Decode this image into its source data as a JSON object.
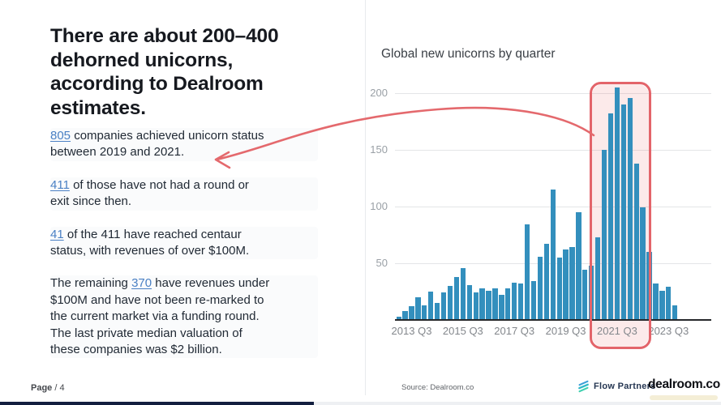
{
  "left": {
    "title": "There are about 200–400\ndehorned unicorns,\naccording to Dealroom\nestimates.",
    "paragraphs": [
      [
        {
          "t": "805",
          "link": true
        },
        {
          "t": " companies achieved unicorn status\nbetween 2019 and 2021."
        }
      ],
      [
        {
          "t": "411",
          "link": true
        },
        {
          "t": " of those have not had a round or\nexit since then."
        }
      ],
      [
        {
          "t": "41",
          "link": true
        },
        {
          "t": " of the 411 have reached centaur\nstatus, with revenues of over $100M."
        }
      ],
      [
        {
          "t": "The remaining "
        },
        {
          "t": "370",
          "link": true
        },
        {
          "t": " have revenues under\n$100M and have not been re-marked to\nthe current market via a funding round.\nThe last private median valuation of\nthese companies was $2 billion."
        }
      ]
    ]
  },
  "footer": {
    "page_bold": "Page",
    "page_rest": " / 4",
    "source": "Source: Dealroom.co",
    "partner_name": "Flow Partners",
    "brand_name": "dealroom.co"
  },
  "colors": {
    "bar_blue": "#338fbd",
    "accent_red": "#e3646a",
    "highlight_fill": "rgba(232,105,108,0.14)",
    "link_blue": "#4a80c4",
    "progress_navy": "#131f3f"
  },
  "chart_data": {
    "type": "bar",
    "title": "Global new unicorns by quarter",
    "x": [
      "2013 Q1",
      "2013 Q2",
      "2013 Q3",
      "2013 Q4",
      "2014 Q1",
      "2014 Q2",
      "2014 Q3",
      "2014 Q4",
      "2015 Q1",
      "2015 Q2",
      "2015 Q3",
      "2015 Q4",
      "2016 Q1",
      "2016 Q2",
      "2016 Q3",
      "2016 Q4",
      "2017 Q1",
      "2017 Q2",
      "2017 Q3",
      "2017 Q4",
      "2018 Q1",
      "2018 Q2",
      "2018 Q3",
      "2018 Q4",
      "2019 Q1",
      "2019 Q2",
      "2019 Q3",
      "2019 Q4",
      "2020 Q1",
      "2020 Q2",
      "2020 Q3",
      "2020 Q4",
      "2021 Q1",
      "2021 Q2",
      "2021 Q3",
      "2021 Q4",
      "2022 Q1",
      "2022 Q2",
      "2022 Q3",
      "2022 Q4",
      "2023 Q1",
      "2023 Q2",
      "2023 Q3",
      "2023 Q4"
    ],
    "values": [
      3,
      8,
      12,
      20,
      13,
      25,
      15,
      24,
      30,
      38,
      46,
      31,
      24,
      28,
      26,
      28,
      22,
      28,
      33,
      32,
      84,
      34,
      56,
      67,
      115,
      55,
      62,
      64,
      95,
      44,
      48,
      73,
      150,
      182,
      205,
      190,
      196,
      138,
      99,
      60,
      32,
      26,
      29,
      13
    ],
    "x_tick_labels": [
      "2013 Q3",
      "2015 Q3",
      "2017 Q3",
      "2019 Q3",
      "2021 Q3",
      "2023 Q3"
    ],
    "y_ticks": [
      50,
      100,
      150,
      200
    ],
    "ylim": [
      0,
      215
    ],
    "grid": true,
    "legend": false,
    "xlabel": "",
    "ylabel": "",
    "highlight_range": {
      "from": "2020 Q4",
      "to": "2022 Q3"
    },
    "annotation_arrow": "points from highlighted 2021 peak toward the 805-companies statement"
  }
}
